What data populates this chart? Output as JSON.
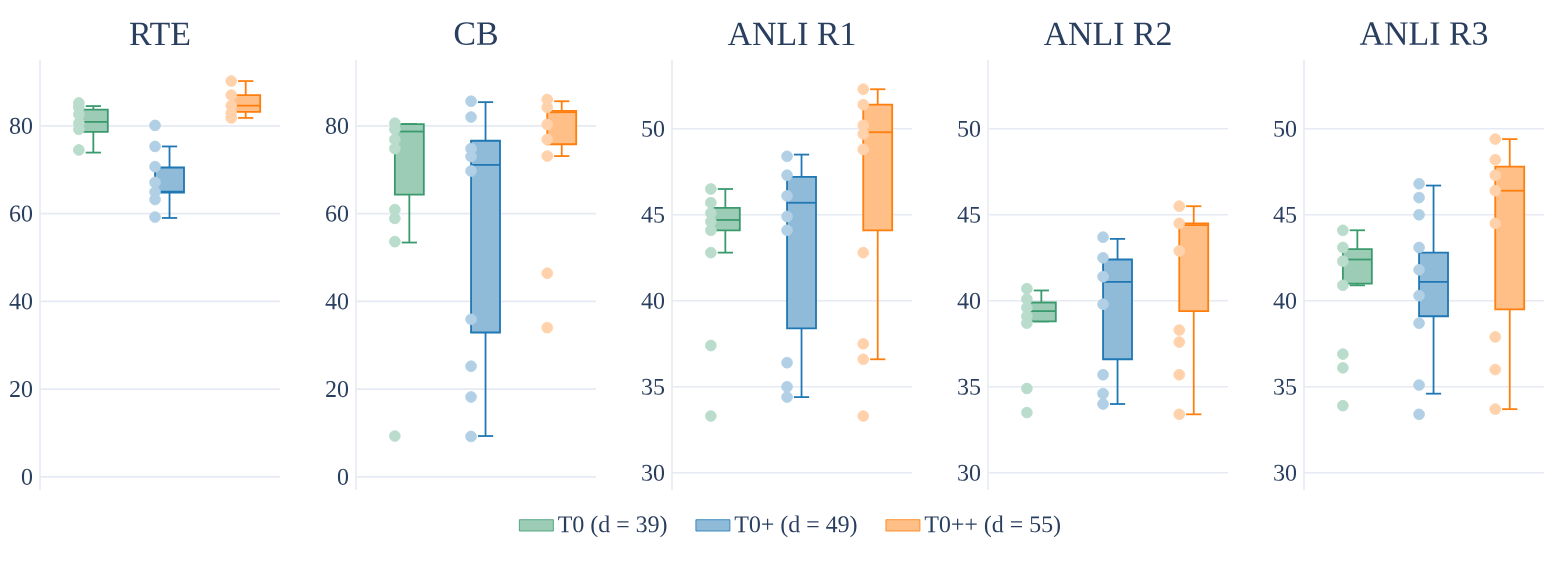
{
  "chart_data": [
    {
      "type": "box",
      "title": "RTE",
      "categories": [
        null
      ],
      "ylim": [
        -3,
        95
      ],
      "yticks": [
        0,
        20,
        40,
        60,
        80
      ],
      "grid": "y",
      "series": [
        {
          "color": "#3a9a6e",
          "boxes": [
            {
              "low": 73.9,
              "q1": 78.6,
              "median": 80.9,
              "q3": 83.7,
              "high": 84.5,
              "outliers": [
                85.2,
                84.2,
                82.6,
                80.6,
                79.2,
                74.5
              ]
            }
          ]
        },
        {
          "color": "#1f77b4",
          "boxes": [
            {
              "low": 59,
              "q1": 64.8,
              "median": 65,
              "q3": 70.5,
              "high": 75.3,
              "outliers": [
                80.1,
                75.3,
                70.7,
                67.1,
                64.9,
                63.2,
                59.2
              ]
            }
          ]
        },
        {
          "color": "#ff7f0e",
          "boxes": [
            {
              "low": 81.8,
              "q1": 83.2,
              "median": 84.6,
              "q3": 87,
              "high": 90.2,
              "outliers": [
                90.2,
                87,
                84.6,
                82.9,
                81.8
              ]
            }
          ]
        }
      ]
    },
    {
      "type": "box",
      "title": "CB",
      "categories": [
        null
      ],
      "ylim": [
        -3,
        95
      ],
      "yticks": [
        0,
        20,
        40,
        60,
        80
      ],
      "grid": "y",
      "series": [
        {
          "color": "#3a9a6e",
          "boxes": [
            {
              "low": 53.4,
              "q1": 64.3,
              "median": 78.7,
              "q3": 80.4,
              "high": 80.4,
              "outliers": [
                80.6,
                79.2,
                76.9,
                74.8,
                60.9,
                58.9,
                53.6,
                9.3
              ]
            }
          ]
        },
        {
          "color": "#1f77b4",
          "boxes": [
            {
              "low": 9.3,
              "q1": 32.9,
              "median": 71.1,
              "q3": 76.6,
              "high": 85.4,
              "outliers": [
                85.6,
                82,
                74.8,
                73,
                69.7,
                35.9,
                25.2,
                18.2,
                9.2
              ]
            }
          ]
        },
        {
          "color": "#ff7f0e",
          "boxes": [
            {
              "low": 73.1,
              "q1": 75.8,
              "median": 83.1,
              "q3": 83.4,
              "high": 85.6,
              "outliers": [
                86,
                84.2,
                80.3,
                76.9,
                73.1,
                46.4,
                34
              ]
            }
          ]
        }
      ]
    },
    {
      "type": "box",
      "title": "ANLI R1",
      "categories": [
        null
      ],
      "ylim": [
        29,
        54
      ],
      "yticks": [
        30,
        35,
        40,
        45,
        50
      ],
      "grid": "y",
      "legend": "bottom",
      "series": [
        {
          "name": "T0 (d = 39)",
          "color": "#3a9a6e",
          "boxes": [
            {
              "low": 42.8,
              "q1": 44.1,
              "median": 44.7,
              "q3": 45.4,
              "high": 46.5,
              "outliers": [
                46.5,
                45.7,
                45.1,
                44.6,
                44.1,
                42.8,
                37.4,
                33.3
              ]
            }
          ]
        },
        {
          "name": "T0+ (d = 49)",
          "color": "#1f77b4",
          "boxes": [
            {
              "low": 34.4,
              "q1": 38.4,
              "median": 45.7,
              "q3": 47.2,
              "high": 48.5,
              "outliers": [
                48.4,
                47.3,
                46.1,
                44.9,
                44.1,
                36.4,
                35,
                34.4
              ]
            }
          ]
        },
        {
          "name": "T0++ (d = 55)",
          "color": "#ff7f0e",
          "boxes": [
            {
              "low": 36.6,
              "q1": 44.1,
              "median": 49.8,
              "q3": 51.4,
              "high": 52.3,
              "outliers": [
                52.3,
                51.4,
                50.2,
                49.7,
                48.8,
                42.8,
                37.5,
                36.6,
                33.3
              ]
            }
          ]
        }
      ]
    },
    {
      "type": "box",
      "title": "ANLI R2",
      "categories": [
        null
      ],
      "ylim": [
        29,
        54
      ],
      "yticks": [
        30,
        35,
        40,
        45,
        50
      ],
      "grid": "y",
      "series": [
        {
          "color": "#3a9a6e",
          "boxes": [
            {
              "low": 38.8,
              "q1": 38.8,
              "median": 39.4,
              "q3": 39.9,
              "high": 40.6,
              "outliers": [
                40.7,
                40.1,
                39.6,
                39.1,
                38.7,
                34.9,
                33.5
              ]
            }
          ]
        },
        {
          "color": "#1f77b4",
          "boxes": [
            {
              "low": 34,
              "q1": 36.6,
              "median": 41.1,
              "q3": 42.4,
              "high": 43.6,
              "outliers": [
                43.7,
                42.5,
                41.4,
                39.8,
                35.7,
                34.6,
                34
              ]
            }
          ]
        },
        {
          "color": "#ff7f0e",
          "boxes": [
            {
              "low": 33.4,
              "q1": 39.4,
              "median": 44.4,
              "q3": 44.5,
              "high": 45.5,
              "outliers": [
                45.5,
                44.5,
                42.9,
                38.3,
                37.6,
                35.7,
                33.4
              ]
            }
          ]
        }
      ]
    },
    {
      "type": "box",
      "title": "ANLI R3",
      "categories": [
        null
      ],
      "ylim": [
        29,
        54
      ],
      "yticks": [
        30,
        35,
        40,
        45,
        50
      ],
      "grid": "y",
      "series": [
        {
          "color": "#3a9a6e",
          "boxes": [
            {
              "low": 40.9,
              "q1": 41,
              "median": 42.4,
              "q3": 43,
              "high": 44.1,
              "outliers": [
                44.1,
                43.1,
                42.3,
                40.9,
                36.9,
                36.1,
                33.9
              ]
            }
          ]
        },
        {
          "color": "#1f77b4",
          "boxes": [
            {
              "low": 34.6,
              "q1": 39.1,
              "median": 41.1,
              "q3": 42.8,
              "high": 46.7,
              "outliers": [
                46.8,
                46,
                45,
                43.1,
                41.8,
                40.3,
                38.7,
                35.1,
                33.4
              ]
            }
          ]
        },
        {
          "color": "#ff7f0e",
          "boxes": [
            {
              "low": 33.7,
              "q1": 39.5,
              "median": 46.4,
              "q3": 47.8,
              "high": 49.4,
              "outliers": [
                49.4,
                48.2,
                47.3,
                46.4,
                44.5,
                37.9,
                36,
                33.7
              ]
            }
          ]
        }
      ]
    }
  ]
}
